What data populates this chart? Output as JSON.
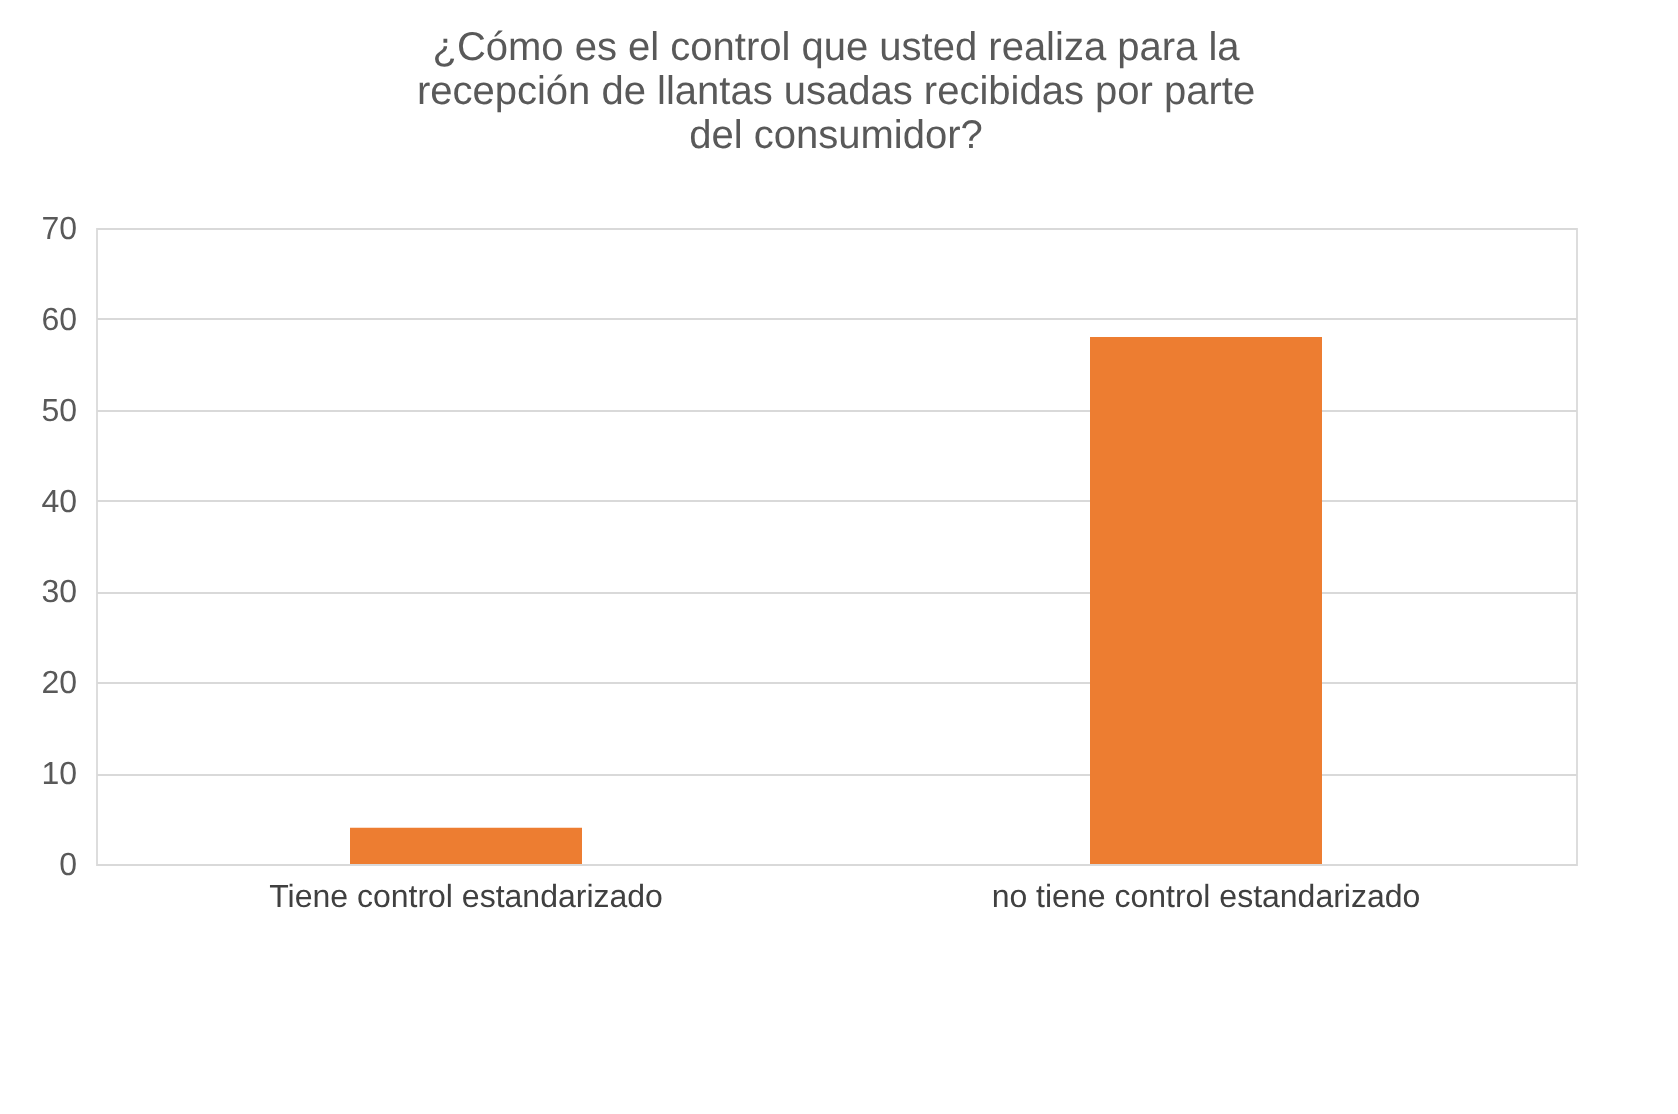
{
  "chart_data": {
    "type": "bar",
    "title": "¿Cómo es el control que usted realiza para la recepción de llantas usadas recibidas por parte del consumidor?",
    "categories": [
      "Tiene control estandarizado",
      "no tiene control estandarizado"
    ],
    "values": [
      4,
      58
    ],
    "color": "#ed7d31",
    "ylim": [
      0,
      70
    ],
    "yticks": [
      0,
      10,
      20,
      30,
      40,
      50,
      60,
      70
    ],
    "grid": "y"
  }
}
